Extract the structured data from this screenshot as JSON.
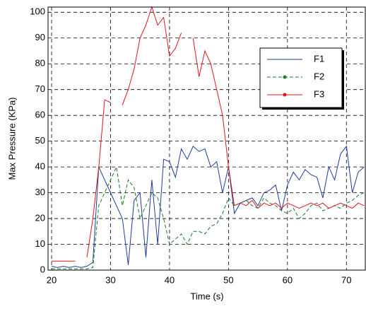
{
  "chart_data": {
    "type": "line",
    "xlabel": "Time (s)",
    "ylabel": "Max Pressure (KPa)",
    "x": [
      20,
      21,
      22,
      23,
      24,
      25,
      26,
      27,
      28,
      29,
      30,
      31,
      32,
      33,
      34,
      35,
      36,
      37,
      38,
      39,
      40,
      41,
      42,
      43,
      44,
      45,
      46,
      47,
      48,
      49,
      50,
      51,
      52,
      53,
      54,
      55,
      56,
      57,
      58,
      59,
      60,
      61,
      62,
      63,
      64,
      65,
      66,
      67,
      68,
      69,
      70,
      71,
      72,
      73
    ],
    "series": [
      {
        "name": "F1",
        "color": "#1f3c9c",
        "style": "solid",
        "marker": "none",
        "values": [
          1.5,
          1,
          1.5,
          1,
          1.5,
          1,
          1.5,
          3,
          40,
          35,
          30,
          25,
          20,
          2,
          27,
          30,
          5,
          35,
          10,
          43,
          42,
          36,
          47,
          43,
          48,
          46,
          47,
          40,
          42,
          30,
          40,
          22,
          26,
          27,
          28,
          25,
          30,
          31,
          33,
          23,
          33,
          38,
          35,
          39,
          37,
          36,
          28,
          40,
          35,
          45,
          48,
          30,
          38,
          40
        ]
      },
      {
        "name": "F2",
        "color": "#1a7a2a",
        "style": "dashed",
        "marker": "dot",
        "values": [
          0.5,
          0.5,
          0.5,
          0.5,
          0.5,
          0.5,
          0.5,
          1,
          25,
          30,
          35,
          40,
          25,
          35,
          32,
          20,
          25,
          30,
          28,
          20,
          10,
          12,
          14,
          10,
          15,
          15,
          14,
          17,
          18,
          22,
          28,
          25,
          26,
          27,
          25,
          24,
          28,
          26,
          25,
          23,
          22,
          24,
          20,
          22,
          25,
          26,
          23,
          24,
          25,
          24,
          26,
          27,
          29,
          30
        ]
      },
      {
        "name": "F3",
        "color": "#e0141e",
        "style": "solid",
        "marker": "dot",
        "values": [
          3.5,
          3.5,
          3.5,
          3.5,
          3.5,
          null,
          5,
          20,
          40,
          66,
          65,
          null,
          64,
          70,
          78,
          90,
          95,
          102,
          95,
          98,
          83,
          86,
          92,
          null,
          90,
          75,
          85,
          80,
          70,
          60,
          40,
          25,
          26,
          25,
          27,
          24,
          26,
          25,
          26,
          24,
          26,
          25,
          24,
          25,
          26,
          25,
          26,
          24,
          25,
          26,
          25,
          24,
          26,
          25
        ]
      }
    ],
    "xlim": [
      19.4,
      73.2
    ],
    "xticks": [
      20,
      30,
      40,
      50,
      60,
      70
    ],
    "ylim": [
      0,
      102
    ],
    "yticks": [
      0,
      10,
      20,
      30,
      40,
      50,
      60,
      70,
      80,
      90,
      100
    ],
    "grid": true,
    "legend": "upper right"
  }
}
